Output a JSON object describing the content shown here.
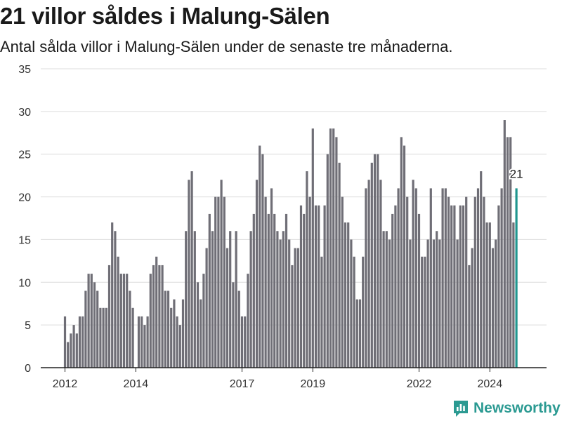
{
  "header": {
    "title": "21 villor såldes i Malung-Sälen",
    "subtitle": "Antal sålda villor i Malung-Sälen under de senaste tre månaderna."
  },
  "brand": {
    "name": "Newsworthy",
    "icon": "newsworthy-logo-icon",
    "color": "#2b9a92"
  },
  "chart_data": {
    "type": "bar",
    "title": "21 villor såldes i Malung-Sälen",
    "subtitle": "Antal sålda villor i Malung-Sälen under de senaste tre månaderna.",
    "xlabel": "",
    "ylabel": "",
    "ylim": [
      0,
      35
    ],
    "yticks": [
      0,
      5,
      10,
      15,
      20,
      25,
      30,
      35
    ],
    "xticks": [
      {
        "label": "2012",
        "index": 0
      },
      {
        "label": "2014",
        "index": 24
      },
      {
        "label": "2017",
        "index": 60
      },
      {
        "label": "2019",
        "index": 84
      },
      {
        "label": "2022",
        "index": 120
      },
      {
        "label": "2024",
        "index": 144
      }
    ],
    "grid": true,
    "bar_color": "#6f6e76",
    "highlight_color": "#20968f",
    "highlight_index": 153,
    "highlight_label": "21",
    "values": [
      6,
      3,
      4,
      5,
      4,
      6,
      6,
      9,
      11,
      11,
      10,
      9,
      7,
      7,
      7,
      12,
      17,
      16,
      13,
      11,
      11,
      11,
      9,
      7,
      0,
      6,
      6,
      5,
      6,
      11,
      12,
      13,
      12,
      12,
      9,
      9,
      7,
      8,
      6,
      5,
      8,
      16,
      22,
      23,
      16,
      10,
      8,
      11,
      14,
      18,
      16,
      20,
      20,
      22,
      20,
      14,
      16,
      10,
      16,
      9,
      6,
      6,
      11,
      16,
      18,
      22,
      26,
      25,
      20,
      18,
      21,
      18,
      16,
      15,
      16,
      18,
      15,
      12,
      14,
      14,
      19,
      18,
      23,
      20,
      28,
      19,
      19,
      13,
      19,
      25,
      28,
      28,
      27,
      24,
      20,
      17,
      17,
      15,
      13,
      8,
      8,
      13,
      21,
      22,
      24,
      25,
      25,
      22,
      16,
      16,
      15,
      18,
      19,
      21,
      27,
      26,
      20,
      15,
      22,
      21,
      18,
      13,
      13,
      15,
      21,
      15,
      16,
      15,
      21,
      21,
      20,
      19,
      19,
      15,
      19,
      19,
      20,
      12,
      14,
      20,
      21,
      23,
      20,
      17,
      17,
      14,
      15,
      19,
      21,
      29,
      27,
      27,
      17,
      21
    ]
  }
}
